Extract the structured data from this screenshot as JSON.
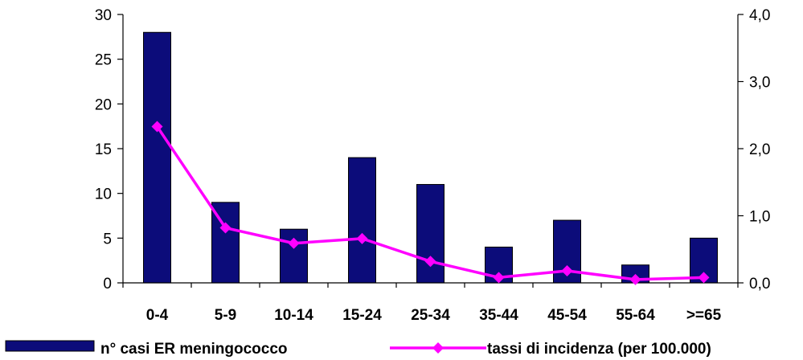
{
  "chart_data": {
    "type": "bar+line",
    "title": "",
    "categories": [
      "0-4",
      "5-9",
      "10-14",
      "15-24",
      "25-34",
      "35-44",
      "45-54",
      "55-64",
      ">=65"
    ],
    "series": [
      {
        "name": "n° casi ER meningococco",
        "type": "bar",
        "axis": "left",
        "color": "#0c0c7a",
        "values": [
          28,
          9,
          6,
          14,
          11,
          4,
          7,
          2,
          5
        ]
      },
      {
        "name": "tassi di incidenza (per 100.000)",
        "type": "line",
        "axis": "right",
        "color": "#ff00ff",
        "values": [
          2.33,
          0.82,
          0.59,
          0.66,
          0.32,
          0.08,
          0.18,
          0.05,
          0.08
        ]
      }
    ],
    "y_left": {
      "min": 0,
      "max": 30,
      "ticks": [
        "0",
        "5",
        "10",
        "15",
        "20",
        "25",
        "30"
      ]
    },
    "y_right": {
      "min": 0,
      "max": 4,
      "ticks": [
        "0,0",
        "1,0",
        "2,0",
        "3,0",
        "4,0"
      ]
    },
    "xlabel": "",
    "ylabel": "",
    "grid": false,
    "legend_position": "bottom"
  }
}
